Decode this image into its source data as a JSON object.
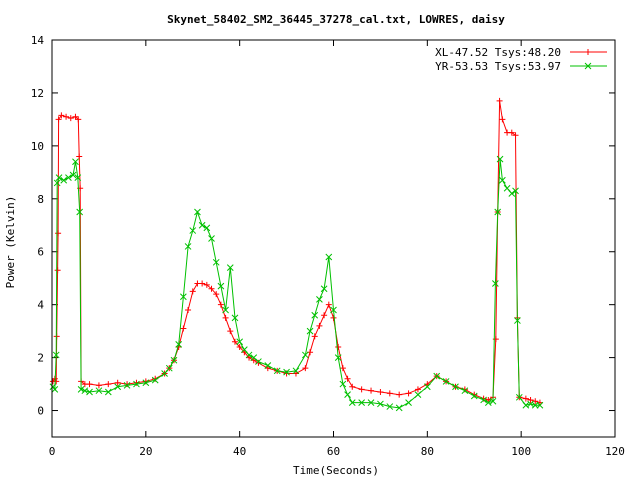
{
  "chart_data": {
    "type": "line",
    "title": "Skynet_58402_SM2_36445_37278_cal.txt, LOWRES, daisy",
    "xlabel": "Time(Seconds)",
    "ylabel": "Power (Kelvin)",
    "xlim": [
      0,
      120
    ],
    "ylim": [
      -1,
      14
    ],
    "xticks": [
      0,
      20,
      40,
      60,
      80,
      100,
      120
    ],
    "yticks": [
      0,
      2,
      4,
      6,
      8,
      10,
      12,
      14
    ],
    "grid": false,
    "legend_position": "top-right",
    "series": [
      {
        "name": "XL-47.52 Tsys:48.20",
        "color": "#ff0000",
        "marker": "plus",
        "points": [
          [
            0.2,
            1.1
          ],
          [
            0.6,
            1.2
          ],
          [
            0.9,
            1.1
          ],
          [
            1.0,
            2.8
          ],
          [
            1.2,
            5.3
          ],
          [
            1.3,
            6.7
          ],
          [
            1.4,
            11.0
          ],
          [
            2,
            11.15
          ],
          [
            3,
            11.1
          ],
          [
            4,
            11.05
          ],
          [
            5,
            11.1
          ],
          [
            5.6,
            11.0
          ],
          [
            5.8,
            9.6
          ],
          [
            6.0,
            8.4
          ],
          [
            6.2,
            1.1
          ],
          [
            7,
            1.0
          ],
          [
            8,
            1.0
          ],
          [
            10,
            0.95
          ],
          [
            12,
            1.0
          ],
          [
            14,
            1.05
          ],
          [
            16,
            1.0
          ],
          [
            18,
            1.05
          ],
          [
            20,
            1.1
          ],
          [
            22,
            1.2
          ],
          [
            24,
            1.4
          ],
          [
            25,
            1.6
          ],
          [
            26,
            1.9
          ],
          [
            27,
            2.4
          ],
          [
            28,
            3.1
          ],
          [
            29,
            3.8
          ],
          [
            30,
            4.5
          ],
          [
            31,
            4.8
          ],
          [
            32,
            4.8
          ],
          [
            33,
            4.75
          ],
          [
            34,
            4.6
          ],
          [
            35,
            4.4
          ],
          [
            36,
            4.0
          ],
          [
            37,
            3.5
          ],
          [
            38,
            3.0
          ],
          [
            39,
            2.6
          ],
          [
            40,
            2.4
          ],
          [
            41,
            2.2
          ],
          [
            42,
            2.0
          ],
          [
            43,
            1.9
          ],
          [
            44,
            1.8
          ],
          [
            46,
            1.6
          ],
          [
            48,
            1.5
          ],
          [
            50,
            1.4
          ],
          [
            52,
            1.4
          ],
          [
            54,
            1.6
          ],
          [
            55,
            2.2
          ],
          [
            56,
            2.8
          ],
          [
            57,
            3.2
          ],
          [
            58,
            3.6
          ],
          [
            59,
            4.0
          ],
          [
            60,
            3.5
          ],
          [
            61,
            2.4
          ],
          [
            62,
            1.6
          ],
          [
            63,
            1.2
          ],
          [
            64,
            0.9
          ],
          [
            66,
            0.8
          ],
          [
            68,
            0.75
          ],
          [
            70,
            0.7
          ],
          [
            72,
            0.65
          ],
          [
            74,
            0.6
          ],
          [
            76,
            0.65
          ],
          [
            78,
            0.8
          ],
          [
            80,
            1.0
          ],
          [
            82,
            1.3
          ],
          [
            84,
            1.1
          ],
          [
            86,
            0.9
          ],
          [
            88,
            0.8
          ],
          [
            90,
            0.6
          ],
          [
            92,
            0.45
          ],
          [
            93,
            0.4
          ],
          [
            94,
            0.5
          ],
          [
            94.6,
            2.7
          ],
          [
            95,
            7.5
          ],
          [
            95.4,
            11.7
          ],
          [
            96,
            11.0
          ],
          [
            97,
            10.5
          ],
          [
            98,
            10.5
          ],
          [
            98.8,
            10.4
          ],
          [
            99.2,
            3.5
          ],
          [
            99.6,
            0.5
          ],
          [
            101,
            0.45
          ],
          [
            102,
            0.4
          ],
          [
            103,
            0.35
          ],
          [
            104,
            0.3
          ]
        ]
      },
      {
        "name": "YR-53.53 Tsys:53.97",
        "color": "#00c000",
        "marker": "cross",
        "points": [
          [
            0.2,
            0.9
          ],
          [
            0.6,
            0.8
          ],
          [
            0.9,
            2.1
          ],
          [
            1.1,
            8.6
          ],
          [
            1.5,
            8.8
          ],
          [
            2.5,
            8.7
          ],
          [
            3.5,
            8.8
          ],
          [
            4.5,
            8.9
          ],
          [
            5.0,
            9.4
          ],
          [
            5.5,
            8.8
          ],
          [
            5.9,
            7.5
          ],
          [
            6.2,
            0.8
          ],
          [
            7,
            0.75
          ],
          [
            8,
            0.7
          ],
          [
            10,
            0.75
          ],
          [
            12,
            0.7
          ],
          [
            14,
            0.9
          ],
          [
            16,
            0.95
          ],
          [
            18,
            1.0
          ],
          [
            20,
            1.05
          ],
          [
            22,
            1.15
          ],
          [
            24,
            1.4
          ],
          [
            25,
            1.6
          ],
          [
            26,
            1.9
          ],
          [
            27,
            2.5
          ],
          [
            28,
            4.3
          ],
          [
            29,
            6.2
          ],
          [
            30,
            6.8
          ],
          [
            31,
            7.5
          ],
          [
            32,
            7.0
          ],
          [
            33,
            6.9
          ],
          [
            34,
            6.5
          ],
          [
            35,
            5.6
          ],
          [
            36,
            4.7
          ],
          [
            37,
            3.8
          ],
          [
            38,
            5.4
          ],
          [
            39,
            3.5
          ],
          [
            40,
            2.6
          ],
          [
            41,
            2.3
          ],
          [
            42,
            2.1
          ],
          [
            43,
            2.0
          ],
          [
            44,
            1.85
          ],
          [
            46,
            1.7
          ],
          [
            48,
            1.5
          ],
          [
            50,
            1.45
          ],
          [
            52,
            1.5
          ],
          [
            54,
            2.1
          ],
          [
            55,
            3.0
          ],
          [
            56,
            3.6
          ],
          [
            57,
            4.2
          ],
          [
            58,
            4.6
          ],
          [
            59,
            5.8
          ],
          [
            60,
            3.8
          ],
          [
            61,
            2.0
          ],
          [
            62,
            1.0
          ],
          [
            63,
            0.6
          ],
          [
            64,
            0.3
          ],
          [
            66,
            0.3
          ],
          [
            68,
            0.3
          ],
          [
            70,
            0.25
          ],
          [
            72,
            0.15
          ],
          [
            74,
            0.1
          ],
          [
            76,
            0.3
          ],
          [
            78,
            0.6
          ],
          [
            80,
            0.9
          ],
          [
            82,
            1.3
          ],
          [
            84,
            1.1
          ],
          [
            86,
            0.9
          ],
          [
            88,
            0.75
          ],
          [
            90,
            0.55
          ],
          [
            92,
            0.4
          ],
          [
            93,
            0.3
          ],
          [
            94,
            0.35
          ],
          [
            94.5,
            4.8
          ],
          [
            95,
            7.5
          ],
          [
            95.5,
            9.5
          ],
          [
            96,
            8.7
          ],
          [
            97,
            8.4
          ],
          [
            98,
            8.2
          ],
          [
            98.8,
            8.3
          ],
          [
            99.2,
            3.4
          ],
          [
            99.6,
            0.5
          ],
          [
            101,
            0.2
          ],
          [
            102,
            0.25
          ],
          [
            103,
            0.2
          ],
          [
            104,
            0.2
          ]
        ]
      }
    ]
  }
}
